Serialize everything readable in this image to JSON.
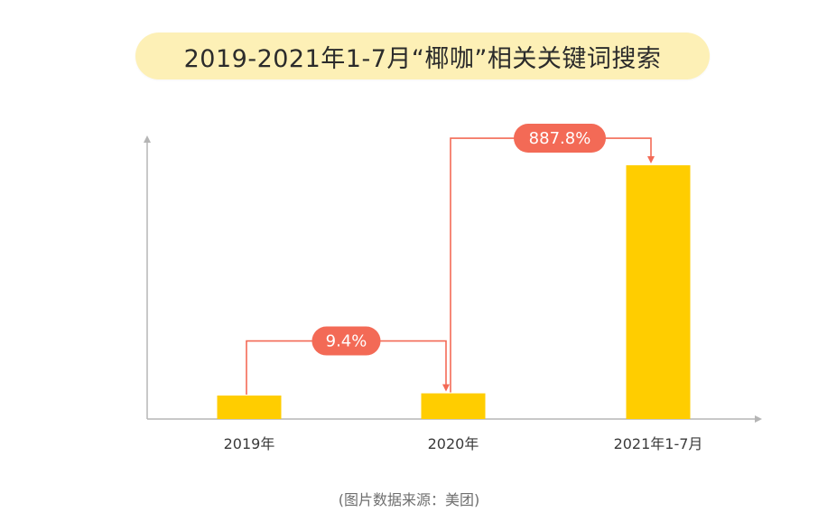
{
  "title": "2019-2021年1-7月“椰咖”相关关键词搜索",
  "source_note": "(图片数据来源：美团)",
  "colors": {
    "bar": "#ffcd00",
    "arrow": "#f36a56",
    "label_bg": "#f36a56",
    "axis": "#b5b5b5",
    "title_bg": "#fdf0b6"
  },
  "chart_data": {
    "type": "bar",
    "categories": [
      "2019年",
      "2020年",
      "2021年1-7月"
    ],
    "values": [
      10,
      10.94,
      108.07
    ],
    "ylim": [
      0,
      120
    ],
    "grid": false,
    "legend": "none",
    "annotations": [
      {
        "from": 0,
        "to": 1,
        "label": "9.4%"
      },
      {
        "from": 1,
        "to": 2,
        "label": "887.8%"
      }
    ]
  }
}
